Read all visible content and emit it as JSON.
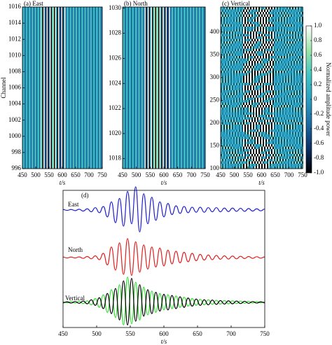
{
  "chart_data": [
    {
      "type": "heatmap",
      "title": "(a) East",
      "ylabel": "Channel",
      "xlabel": "t/s",
      "xlim": [
        450,
        750
      ],
      "xticks": [
        450,
        500,
        550,
        600,
        650,
        700,
        750
      ],
      "ylim": [
        996,
        1016
      ],
      "yticks": [
        996,
        998,
        1000,
        1002,
        1004,
        1006,
        1008,
        1010,
        1012,
        1014,
        1016
      ]
    },
    {
      "type": "heatmap",
      "title": "(b) North",
      "xlabel": "t/s",
      "xlim": [
        450,
        750
      ],
      "xticks": [
        450,
        500,
        550,
        600,
        650,
        700,
        750
      ],
      "ylim": [
        1017.2,
        1030.1
      ],
      "yticks": [
        1018,
        1020,
        1022,
        1024,
        1026,
        1028,
        1030
      ]
    },
    {
      "type": "heatmap",
      "title": "(c) Vertical",
      "xlabel": "t/s",
      "xlim": [
        450,
        750
      ],
      "xticks": [
        450,
        500,
        550,
        600,
        650,
        700,
        750
      ],
      "ylim": [
        100,
        455
      ],
      "yticks": [
        100,
        150,
        200,
        250,
        300,
        350,
        400
      ],
      "colorbar": {
        "label": "Normalized amplitude power",
        "lim": [
          -1,
          1
        ],
        "ticks": [
          {
            "value": 1,
            "label": "1.0"
          },
          0.8,
          0.6,
          0.4,
          0.2,
          0,
          -0.2,
          -0.4,
          -0.6,
          -0.8,
          {
            "value": -1,
            "label": "-1.0"
          }
        ],
        "colormap": [
          "#000000",
          "#0b2f66",
          "#1b6aa3",
          "#2a9fc2",
          "#40c6c4",
          "#9be6a6",
          "#ffffff"
        ]
      }
    },
    {
      "type": "line",
      "title": "(d)",
      "xlabel": "t/s",
      "xlim": [
        450,
        750
      ],
      "xticks": [
        450,
        500,
        550,
        600,
        650,
        700,
        750
      ],
      "x": [
        450,
        456,
        462,
        468,
        474,
        480,
        486,
        492,
        498,
        504,
        510,
        516,
        522,
        528,
        534,
        540,
        546,
        552,
        558,
        564,
        570,
        576,
        582,
        588,
        594,
        600,
        606,
        612,
        618,
        624,
        630,
        636,
        642,
        648,
        654,
        660,
        666,
        672,
        678,
        684,
        690,
        696,
        702,
        708,
        714,
        720,
        726,
        732,
        738,
        744,
        750
      ],
      "series": [
        {
          "name": "East",
          "color": "#1f1fd0",
          "values": [
            0.02,
            -0.02,
            0.02,
            -0.03,
            0.03,
            -0.05,
            0.05,
            -0.08,
            0.1,
            -0.12,
            0.15,
            -0.3,
            0.35,
            -0.55,
            0.5,
            -0.7,
            0.8,
            -0.6,
            1.0,
            -0.95,
            0.7,
            -0.6,
            0.55,
            -0.45,
            0.35,
            -0.3,
            0.28,
            -0.2,
            0.18,
            -0.15,
            0.15,
            -0.12,
            0.12,
            -0.1,
            0.12,
            -0.1,
            0.1,
            -0.08,
            0.1,
            -0.08,
            0.08,
            -0.07,
            0.08,
            -0.06,
            0.07,
            -0.06,
            0.06,
            -0.05,
            0.05,
            -0.04,
            0.04
          ]
        },
        {
          "name": "North",
          "color": "#e02020",
          "values": [
            0.02,
            -0.02,
            0.02,
            -0.02,
            0.03,
            -0.04,
            0.05,
            -0.06,
            0.08,
            -0.1,
            0.2,
            -0.35,
            0.5,
            -0.6,
            0.7,
            -0.8,
            0.9,
            -0.85,
            0.75,
            -0.7,
            0.6,
            -0.55,
            0.5,
            -0.45,
            0.45,
            -0.4,
            0.35,
            -0.3,
            0.3,
            -0.25,
            0.25,
            -0.2,
            0.2,
            -0.15,
            0.15,
            -0.12,
            0.12,
            -0.1,
            0.1,
            -0.08,
            0.08,
            -0.07,
            0.07,
            -0.06,
            0.06,
            -0.05,
            0.05,
            -0.04,
            0.04,
            -0.03,
            0.03
          ]
        },
        {
          "name": "Vertical",
          "color": "#33dd33",
          "values": [
            0.02,
            -0.02,
            0.03,
            -0.03,
            0.04,
            -0.05,
            0.06,
            -0.1,
            0.15,
            -0.2,
            0.3,
            -0.4,
            0.5,
            -0.6,
            0.7,
            -0.9,
            1.0,
            -0.85,
            0.8,
            -0.7,
            0.6,
            -0.5,
            0.45,
            -0.4,
            0.35,
            -0.3,
            0.3,
            -0.25,
            0.25,
            -0.2,
            0.2,
            -0.15,
            0.15,
            -0.12,
            0.12,
            -0.1,
            0.1,
            -0.08,
            0.08,
            -0.07,
            0.07,
            -0.06,
            0.06,
            -0.05,
            0.05,
            -0.04,
            0.04,
            -0.03,
            0.03,
            -0.02,
            0.02
          ]
        },
        {
          "name": null,
          "color": "#000000",
          "values": [
            -0.02,
            0.02,
            -0.03,
            0.03,
            -0.04,
            0.05,
            -0.06,
            0.1,
            -0.12,
            0.18,
            -0.25,
            0.35,
            -0.45,
            0.55,
            -0.7,
            0.85,
            -0.9,
            0.95,
            -0.75,
            0.7,
            -0.55,
            0.5,
            -0.45,
            0.4,
            -0.35,
            0.32,
            -0.3,
            0.27,
            -0.25,
            0.22,
            -0.2,
            0.17,
            -0.15,
            0.13,
            -0.12,
            0.1,
            -0.1,
            0.09,
            -0.08,
            0.07,
            -0.07,
            0.06,
            -0.06,
            0.05,
            -0.05,
            0.04,
            -0.04,
            0.03,
            -0.03,
            0.02,
            -0.02
          ]
        }
      ]
    }
  ]
}
